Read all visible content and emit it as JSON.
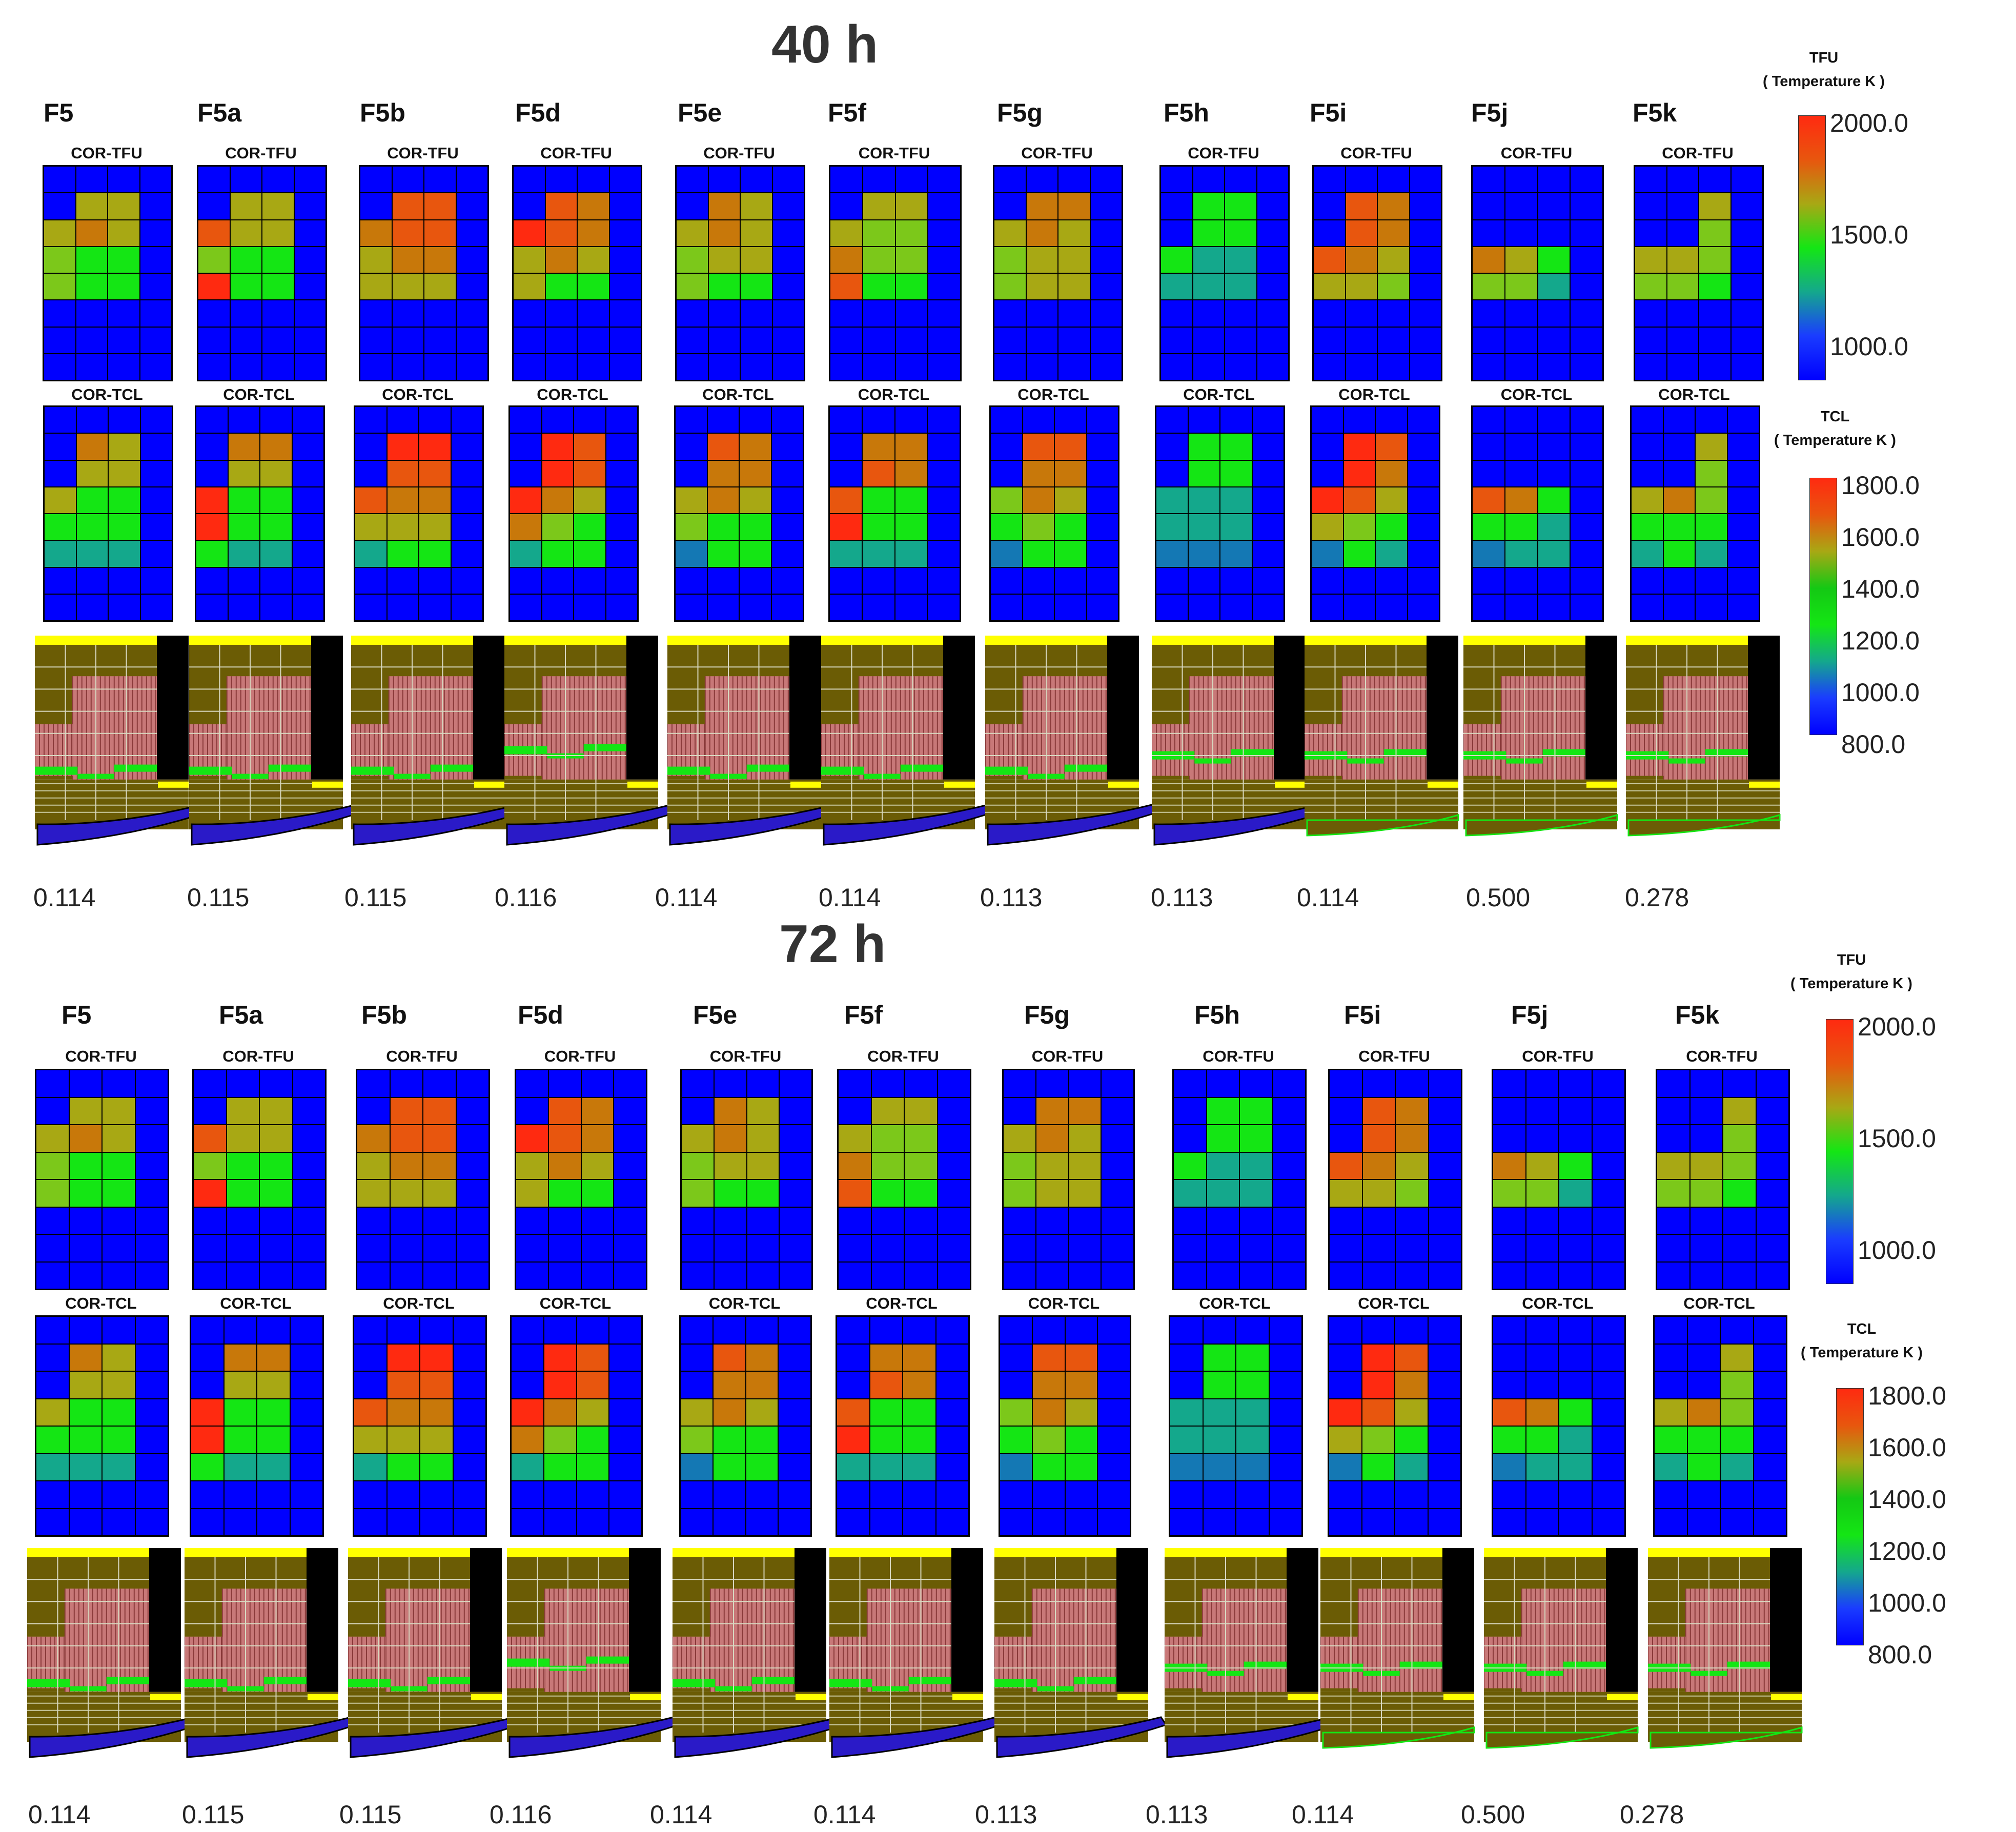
{
  "sections": [
    {
      "title": "40 h",
      "cases": [
        {
          "name": "F5",
          "plot1": "COR-TFU",
          "plot2": "COR-TCL",
          "value": "0.114"
        },
        {
          "name": "F5a",
          "plot1": "COR-TFU",
          "plot2": "COR-TCL",
          "value": "0.115"
        },
        {
          "name": "F5b",
          "plot1": "COR-TFU",
          "plot2": "COR-TCL",
          "value": "0.115"
        },
        {
          "name": "F5d",
          "plot1": "COR-TFU",
          "plot2": "COR-TCL",
          "value": "0.116"
        },
        {
          "name": "F5e",
          "plot1": "COR-TFU",
          "plot2": "COR-TCL",
          "value": "0.114"
        },
        {
          "name": "F5f",
          "plot1": "COR-TFU",
          "plot2": "COR-TCL",
          "value": "0.114"
        },
        {
          "name": "F5g",
          "plot1": "COR-TFU",
          "plot2": "COR-TCL",
          "value": "0.113"
        },
        {
          "name": "F5h",
          "plot1": "COR-TFU",
          "plot2": "COR-TCL",
          "value": "0.113"
        },
        {
          "name": "F5i",
          "plot1": "COR-TFU",
          "plot2": "COR-TCL",
          "value": "0.114"
        },
        {
          "name": "F5j",
          "plot1": "COR-TFU",
          "plot2": "COR-TCL",
          "value": "0.500"
        },
        {
          "name": "F5k",
          "plot1": "COR-TFU",
          "plot2": "COR-TCL",
          "value": "0.278"
        }
      ],
      "legend_tfu": {
        "title": "TFU",
        "subtitle": "( Temperature K )",
        "ticks": [
          "2000.0",
          "1500.0",
          "1000.0"
        ]
      },
      "legend_tcl": {
        "title": "TCL",
        "subtitle": "( Temperature K )",
        "ticks": [
          "1800.0",
          "1600.0",
          "1400.0",
          "1200.0",
          "1000.0",
          "800.0"
        ]
      }
    },
    {
      "title": "72 h",
      "cases": [
        {
          "name": "F5",
          "plot1": "COR-TFU",
          "plot2": "COR-TCL",
          "value": "0.114"
        },
        {
          "name": "F5a",
          "plot1": "COR-TFU",
          "plot2": "COR-TCL",
          "value": "0.115"
        },
        {
          "name": "F5b",
          "plot1": "COR-TFU",
          "plot2": "COR-TCL",
          "value": "0.115"
        },
        {
          "name": "F5d",
          "plot1": "COR-TFU",
          "plot2": "COR-TCL",
          "value": "0.116"
        },
        {
          "name": "F5e",
          "plot1": "COR-TFU",
          "plot2": "COR-TCL",
          "value": "0.114"
        },
        {
          "name": "F5f",
          "plot1": "COR-TFU",
          "plot2": "COR-TCL",
          "value": "0.114"
        },
        {
          "name": "F5g",
          "plot1": "COR-TFU",
          "plot2": "COR-TCL",
          "value": "0.113"
        },
        {
          "name": "F5h",
          "plot1": "COR-TFU",
          "plot2": "COR-TCL",
          "value": "0.113"
        },
        {
          "name": "F5i",
          "plot1": "COR-TFU",
          "plot2": "COR-TCL",
          "value": "0.114"
        },
        {
          "name": "F5j",
          "plot1": "COR-TFU",
          "plot2": "COR-TCL",
          "value": "0.500"
        },
        {
          "name": "F5k",
          "plot1": "COR-TFU",
          "plot2": "COR-TCL",
          "value": "0.278"
        }
      ],
      "legend_tfu": {
        "title": "TFU",
        "subtitle": "( Temperature K )",
        "ticks": [
          "2000.0",
          "1500.0",
          "1000.0"
        ]
      },
      "legend_tcl": {
        "title": "TCL",
        "subtitle": "( Temperature K )",
        "ticks": [
          "1800.0",
          "1600.0",
          "1400.0",
          "1200.0",
          "1000.0",
          "800.0"
        ]
      }
    }
  ],
  "colors": {
    "background_blue": "#0000ff",
    "red": "#ff2a10",
    "orange": "#e8560e",
    "dark_orange": "#c8780a",
    "olive": "#a8a814",
    "yellow_green": "#7cc81a",
    "green": "#14e614",
    "teal": "#14a88c",
    "steel": "#1478b4",
    "core_olive": "#6b5c05",
    "core_pink": "#c87878",
    "plate_yellow": "#ffff00",
    "shell_blue": "#2a1ac8",
    "wall_black": "#000000"
  }
}
